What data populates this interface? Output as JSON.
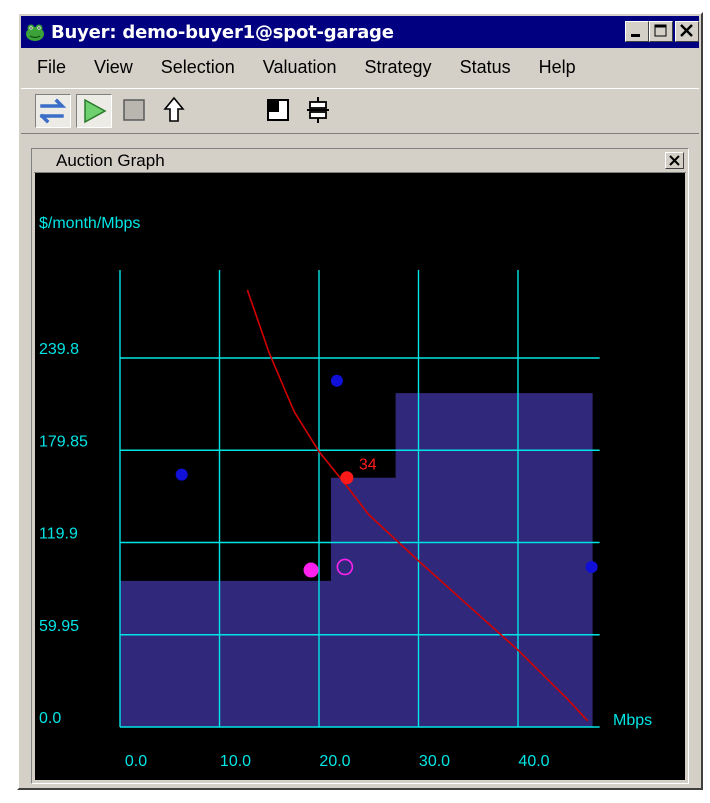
{
  "window": {
    "title": "Buyer: demo-buyer1@spot-garage"
  },
  "menubar": {
    "items": [
      "File",
      "View",
      "Selection",
      "Valuation",
      "Strategy",
      "Status",
      "Help"
    ]
  },
  "toolbar": {
    "buttons": [
      {
        "icon": "swap-arrows-icon",
        "pressed": true
      },
      {
        "icon": "play-icon",
        "pressed": true
      },
      {
        "icon": "stop-icon",
        "pressed": false
      },
      {
        "icon": "up-arrow-icon",
        "pressed": false
      },
      {
        "icon": "window-layout-icon",
        "pressed": false
      },
      {
        "icon": "split-icon",
        "pressed": false
      }
    ]
  },
  "panel": {
    "title": "Auction Graph"
  },
  "chart_data": {
    "type": "line",
    "ylabel": "$/month/Mbps",
    "xlabel": "Mbps",
    "xlim": [
      0,
      48
    ],
    "ylim": [
      0,
      239.8
    ],
    "x_ticks": [
      "0.0",
      "10.0",
      "20.0",
      "30.0",
      "40.0"
    ],
    "y_ticks": [
      "0.0",
      "59.95",
      "119.9",
      "179.85",
      "239.8"
    ],
    "grid": true,
    "supply_steps": [
      {
        "x0": 0,
        "x1": 21.2,
        "y": 95
      },
      {
        "x0": 21.2,
        "x1": 27.7,
        "y": 162
      },
      {
        "x0": 27.7,
        "x1": 47.5,
        "y": 217
      }
    ],
    "demand_curve": [
      [
        12.8,
        284
      ],
      [
        15,
        243
      ],
      [
        17.5,
        205
      ],
      [
        20,
        179
      ],
      [
        22.5,
        159
      ],
      [
        25,
        138
      ],
      [
        30,
        108
      ],
      [
        35,
        79
      ],
      [
        40,
        50
      ],
      [
        45,
        18
      ],
      [
        47,
        4
      ]
    ],
    "blue_points": [
      [
        6.2,
        164
      ],
      [
        21.8,
        225
      ],
      [
        47.4,
        104
      ]
    ],
    "clearing_point": {
      "x": 22.8,
      "y": 162,
      "label": "34"
    },
    "magenta_point": {
      "x": 19.2,
      "y": 102
    },
    "magenta_ring": {
      "x": 22.6,
      "y": 104
    },
    "colors": {
      "background": "#000000",
      "grid": "#00e5e5",
      "supply_fill": "#30287a",
      "demand_line": "#d40000",
      "points": "#1010d8",
      "clearing": "#ff1a1a",
      "magenta": "#ff22ee"
    }
  }
}
